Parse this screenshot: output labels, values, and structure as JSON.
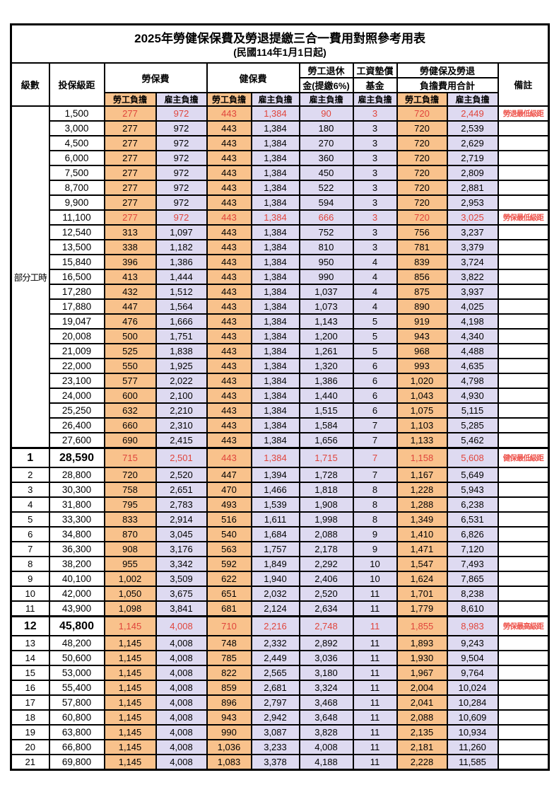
{
  "title": {
    "line1": "2025年勞健保保費及勞退提繳三合一費用對照參考用表",
    "line2": "(民國114年1月1日起)"
  },
  "header": {
    "level": "級數",
    "bracket": "投保級距",
    "labor_ins": "勞保費",
    "health_ins": "健保費",
    "pension_line1": "勞工退休",
    "pension_line2": "金(提繳6%)",
    "wage_fund_line1": "工資墊償",
    "wage_fund_line2": "基金",
    "total_line1": "勞健保及勞退",
    "total_line2": "負擔費用合計",
    "remark": "備註",
    "employee": "勞工負擔",
    "employer": "雇主負擔"
  },
  "part_time_label": "部分工時",
  "colors": {
    "employee_bg": "#F9C28C",
    "employer_bg": "#DEDAF1",
    "highlight_red": "#E0453C",
    "remark_red": "#EE544C"
  },
  "rows": [
    {
      "level": "",
      "bracket": "1,500",
      "values": [
        "277",
        "972",
        "443",
        "1,384",
        "90",
        "3",
        "720",
        "2,449"
      ],
      "remark": "勞退最低級距",
      "red": true,
      "milestone": false
    },
    {
      "level": "",
      "bracket": "3,000",
      "values": [
        "277",
        "972",
        "443",
        "1,384",
        "180",
        "3",
        "720",
        "2,539"
      ],
      "remark": "",
      "red": false,
      "milestone": false
    },
    {
      "level": "",
      "bracket": "4,500",
      "values": [
        "277",
        "972",
        "443",
        "1,384",
        "270",
        "3",
        "720",
        "2,629"
      ],
      "remark": "",
      "red": false,
      "milestone": false
    },
    {
      "level": "",
      "bracket": "6,000",
      "values": [
        "277",
        "972",
        "443",
        "1,384",
        "360",
        "3",
        "720",
        "2,719"
      ],
      "remark": "",
      "red": false,
      "milestone": false
    },
    {
      "level": "",
      "bracket": "7,500",
      "values": [
        "277",
        "972",
        "443",
        "1,384",
        "450",
        "3",
        "720",
        "2,809"
      ],
      "remark": "",
      "red": false,
      "milestone": false
    },
    {
      "level": "",
      "bracket": "8,700",
      "values": [
        "277",
        "972",
        "443",
        "1,384",
        "522",
        "3",
        "720",
        "2,881"
      ],
      "remark": "",
      "red": false,
      "milestone": false
    },
    {
      "level": "",
      "bracket": "9,900",
      "values": [
        "277",
        "972",
        "443",
        "1,384",
        "594",
        "3",
        "720",
        "2,953"
      ],
      "remark": "",
      "red": false,
      "milestone": false
    },
    {
      "level": "",
      "bracket": "11,100",
      "values": [
        "277",
        "972",
        "443",
        "1,384",
        "666",
        "3",
        "720",
        "3,025"
      ],
      "remark": "勞保最低級距",
      "red": true,
      "milestone": false
    },
    {
      "level": "",
      "bracket": "12,540",
      "values": [
        "313",
        "1,097",
        "443",
        "1,384",
        "752",
        "3",
        "756",
        "3,237"
      ],
      "remark": "",
      "red": false,
      "milestone": false
    },
    {
      "level": "",
      "bracket": "13,500",
      "values": [
        "338",
        "1,182",
        "443",
        "1,384",
        "810",
        "3",
        "781",
        "3,379"
      ],
      "remark": "",
      "red": false,
      "milestone": false
    },
    {
      "level": "",
      "bracket": "15,840",
      "values": [
        "396",
        "1,386",
        "443",
        "1,384",
        "950",
        "4",
        "839",
        "3,724"
      ],
      "remark": "",
      "red": false,
      "milestone": false
    },
    {
      "level": "",
      "bracket": "16,500",
      "values": [
        "413",
        "1,444",
        "443",
        "1,384",
        "990",
        "4",
        "856",
        "3,822"
      ],
      "remark": "",
      "red": false,
      "milestone": false
    },
    {
      "level": "",
      "bracket": "17,280",
      "values": [
        "432",
        "1,512",
        "443",
        "1,384",
        "1,037",
        "4",
        "875",
        "3,937"
      ],
      "remark": "",
      "red": false,
      "milestone": false
    },
    {
      "level": "",
      "bracket": "17,880",
      "values": [
        "447",
        "1,564",
        "443",
        "1,384",
        "1,073",
        "4",
        "890",
        "4,025"
      ],
      "remark": "",
      "red": false,
      "milestone": false
    },
    {
      "level": "",
      "bracket": "19,047",
      "values": [
        "476",
        "1,666",
        "443",
        "1,384",
        "1,143",
        "5",
        "919",
        "4,198"
      ],
      "remark": "",
      "red": false,
      "milestone": false
    },
    {
      "level": "",
      "bracket": "20,008",
      "values": [
        "500",
        "1,751",
        "443",
        "1,384",
        "1,200",
        "5",
        "943",
        "4,340"
      ],
      "remark": "",
      "red": false,
      "milestone": false
    },
    {
      "level": "",
      "bracket": "21,009",
      "values": [
        "525",
        "1,838",
        "443",
        "1,384",
        "1,261",
        "5",
        "968",
        "4,488"
      ],
      "remark": "",
      "red": false,
      "milestone": false
    },
    {
      "level": "",
      "bracket": "22,000",
      "values": [
        "550",
        "1,925",
        "443",
        "1,384",
        "1,320",
        "6",
        "993",
        "4,635"
      ],
      "remark": "",
      "red": false,
      "milestone": false
    },
    {
      "level": "",
      "bracket": "23,100",
      "values": [
        "577",
        "2,022",
        "443",
        "1,384",
        "1,386",
        "6",
        "1,020",
        "4,798"
      ],
      "remark": "",
      "red": false,
      "milestone": false
    },
    {
      "level": "",
      "bracket": "24,000",
      "values": [
        "600",
        "2,100",
        "443",
        "1,384",
        "1,440",
        "6",
        "1,043",
        "4,930"
      ],
      "remark": "",
      "red": false,
      "milestone": false
    },
    {
      "level": "",
      "bracket": "25,250",
      "values": [
        "632",
        "2,210",
        "443",
        "1,384",
        "1,515",
        "6",
        "1,075",
        "5,115"
      ],
      "remark": "",
      "red": false,
      "milestone": false
    },
    {
      "level": "",
      "bracket": "26,400",
      "values": [
        "660",
        "2,310",
        "443",
        "1,384",
        "1,584",
        "7",
        "1,103",
        "5,285"
      ],
      "remark": "",
      "red": false,
      "milestone": false
    },
    {
      "level": "",
      "bracket": "27,600",
      "values": [
        "690",
        "2,415",
        "443",
        "1,384",
        "1,656",
        "7",
        "1,133",
        "5,462"
      ],
      "remark": "",
      "red": false,
      "milestone": false
    },
    {
      "level": "1",
      "bracket": "28,590",
      "values": [
        "715",
        "2,501",
        "443",
        "1,384",
        "1,715",
        "7",
        "1,158",
        "5,608"
      ],
      "remark": "健保最低級距",
      "red": true,
      "milestone": true
    },
    {
      "level": "2",
      "bracket": "28,800",
      "values": [
        "720",
        "2,520",
        "447",
        "1,394",
        "1,728",
        "7",
        "1,167",
        "5,649"
      ],
      "remark": "",
      "red": false,
      "milestone": false
    },
    {
      "level": "3",
      "bracket": "30,300",
      "values": [
        "758",
        "2,651",
        "470",
        "1,466",
        "1,818",
        "8",
        "1,228",
        "5,943"
      ],
      "remark": "",
      "red": false,
      "milestone": false
    },
    {
      "level": "4",
      "bracket": "31,800",
      "values": [
        "795",
        "2,783",
        "493",
        "1,539",
        "1,908",
        "8",
        "1,288",
        "6,238"
      ],
      "remark": "",
      "red": false,
      "milestone": false
    },
    {
      "level": "5",
      "bracket": "33,300",
      "values": [
        "833",
        "2,914",
        "516",
        "1,611",
        "1,998",
        "8",
        "1,349",
        "6,531"
      ],
      "remark": "",
      "red": false,
      "milestone": false
    },
    {
      "level": "6",
      "bracket": "34,800",
      "values": [
        "870",
        "3,045",
        "540",
        "1,684",
        "2,088",
        "9",
        "1,410",
        "6,826"
      ],
      "remark": "",
      "red": false,
      "milestone": false
    },
    {
      "level": "7",
      "bracket": "36,300",
      "values": [
        "908",
        "3,176",
        "563",
        "1,757",
        "2,178",
        "9",
        "1,471",
        "7,120"
      ],
      "remark": "",
      "red": false,
      "milestone": false
    },
    {
      "level": "8",
      "bracket": "38,200",
      "values": [
        "955",
        "3,342",
        "592",
        "1,849",
        "2,292",
        "10",
        "1,547",
        "7,493"
      ],
      "remark": "",
      "red": false,
      "milestone": false
    },
    {
      "level": "9",
      "bracket": "40,100",
      "values": [
        "1,002",
        "3,509",
        "622",
        "1,940",
        "2,406",
        "10",
        "1,624",
        "7,865"
      ],
      "remark": "",
      "red": false,
      "milestone": false
    },
    {
      "level": "10",
      "bracket": "42,000",
      "values": [
        "1,050",
        "3,675",
        "651",
        "2,032",
        "2,520",
        "11",
        "1,701",
        "8,238"
      ],
      "remark": "",
      "red": false,
      "milestone": false
    },
    {
      "level": "11",
      "bracket": "43,900",
      "values": [
        "1,098",
        "3,841",
        "681",
        "2,124",
        "2,634",
        "11",
        "1,779",
        "8,610"
      ],
      "remark": "",
      "red": false,
      "milestone": false
    },
    {
      "level": "12",
      "bracket": "45,800",
      "values": [
        "1,145",
        "4,008",
        "710",
        "2,216",
        "2,748",
        "11",
        "1,855",
        "8,983"
      ],
      "remark": "勞保最高級距",
      "red": true,
      "milestone": true
    },
    {
      "level": "13",
      "bracket": "48,200",
      "values": [
        "1,145",
        "4,008",
        "748",
        "2,332",
        "2,892",
        "11",
        "1,893",
        "9,243"
      ],
      "remark": "",
      "red": false,
      "milestone": false
    },
    {
      "level": "14",
      "bracket": "50,600",
      "values": [
        "1,145",
        "4,008",
        "785",
        "2,449",
        "3,036",
        "11",
        "1,930",
        "9,504"
      ],
      "remark": "",
      "red": false,
      "milestone": false
    },
    {
      "level": "15",
      "bracket": "53,000",
      "values": [
        "1,145",
        "4,008",
        "822",
        "2,565",
        "3,180",
        "11",
        "1,967",
        "9,764"
      ],
      "remark": "",
      "red": false,
      "milestone": false
    },
    {
      "level": "16",
      "bracket": "55,400",
      "values": [
        "1,145",
        "4,008",
        "859",
        "2,681",
        "3,324",
        "11",
        "2,004",
        "10,024"
      ],
      "remark": "",
      "red": false,
      "milestone": false
    },
    {
      "level": "17",
      "bracket": "57,800",
      "values": [
        "1,145",
        "4,008",
        "896",
        "2,797",
        "3,468",
        "11",
        "2,041",
        "10,284"
      ],
      "remark": "",
      "red": false,
      "milestone": false
    },
    {
      "level": "18",
      "bracket": "60,800",
      "values": [
        "1,145",
        "4,008",
        "943",
        "2,942",
        "3,648",
        "11",
        "2,088",
        "10,609"
      ],
      "remark": "",
      "red": false,
      "milestone": false
    },
    {
      "level": "19",
      "bracket": "63,800",
      "values": [
        "1,145",
        "4,008",
        "990",
        "3,087",
        "3,828",
        "11",
        "2,135",
        "10,934"
      ],
      "remark": "",
      "red": false,
      "milestone": false
    },
    {
      "level": "20",
      "bracket": "66,800",
      "values": [
        "1,145",
        "4,008",
        "1,036",
        "3,233",
        "4,008",
        "11",
        "2,181",
        "11,260"
      ],
      "remark": "",
      "red": false,
      "milestone": false
    },
    {
      "level": "21",
      "bracket": "69,800",
      "values": [
        "1,145",
        "4,008",
        "1,083",
        "3,378",
        "4,188",
        "11",
        "2,228",
        "11,585"
      ],
      "remark": "",
      "red": false,
      "milestone": false
    }
  ]
}
